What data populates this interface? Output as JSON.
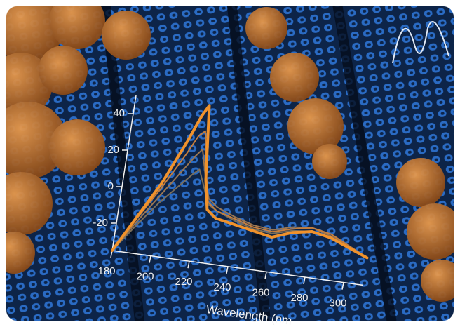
{
  "chart_data": {
    "type": "line",
    "x_label": "Wavelength (nm",
    "x": [
      180,
      190,
      200,
      210,
      215,
      218,
      222,
      225,
      230,
      240,
      250,
      260,
      270,
      280,
      290,
      300,
      310
    ],
    "series": [
      {
        "color": "#f0922c",
        "values": [
          -35,
          -15,
          5,
          30,
          44,
          50,
          10,
          -6,
          -10,
          -12,
          -14,
          -16,
          -12,
          -10,
          -12,
          -16,
          -20
        ]
      },
      {
        "color": "#c47e3e",
        "values": [
          -35,
          -16,
          2,
          22,
          33,
          36,
          12,
          -2,
          -6,
          -9,
          -12,
          -13,
          -10,
          -8,
          -10,
          -15,
          -20
        ]
      },
      {
        "color": "#9a7652",
        "values": [
          -35,
          -18,
          -2,
          14,
          22,
          26,
          10,
          0,
          -4,
          -8,
          -11,
          -12,
          -9,
          -8,
          -11,
          -15,
          -20
        ]
      },
      {
        "color": "#7a6e5a",
        "values": [
          -35,
          -20,
          -6,
          6,
          12,
          15,
          5,
          -3,
          -6,
          -10,
          -13,
          -14,
          -11,
          -10,
          -12,
          -16,
          -20
        ]
      }
    ],
    "xlim": [
      180,
      310
    ],
    "ylim": [
      -35,
      50
    ],
    "xticks": [
      180,
      200,
      220,
      240,
      260,
      280,
      300
    ],
    "yticks": [
      -20,
      0,
      20,
      40
    ]
  }
}
